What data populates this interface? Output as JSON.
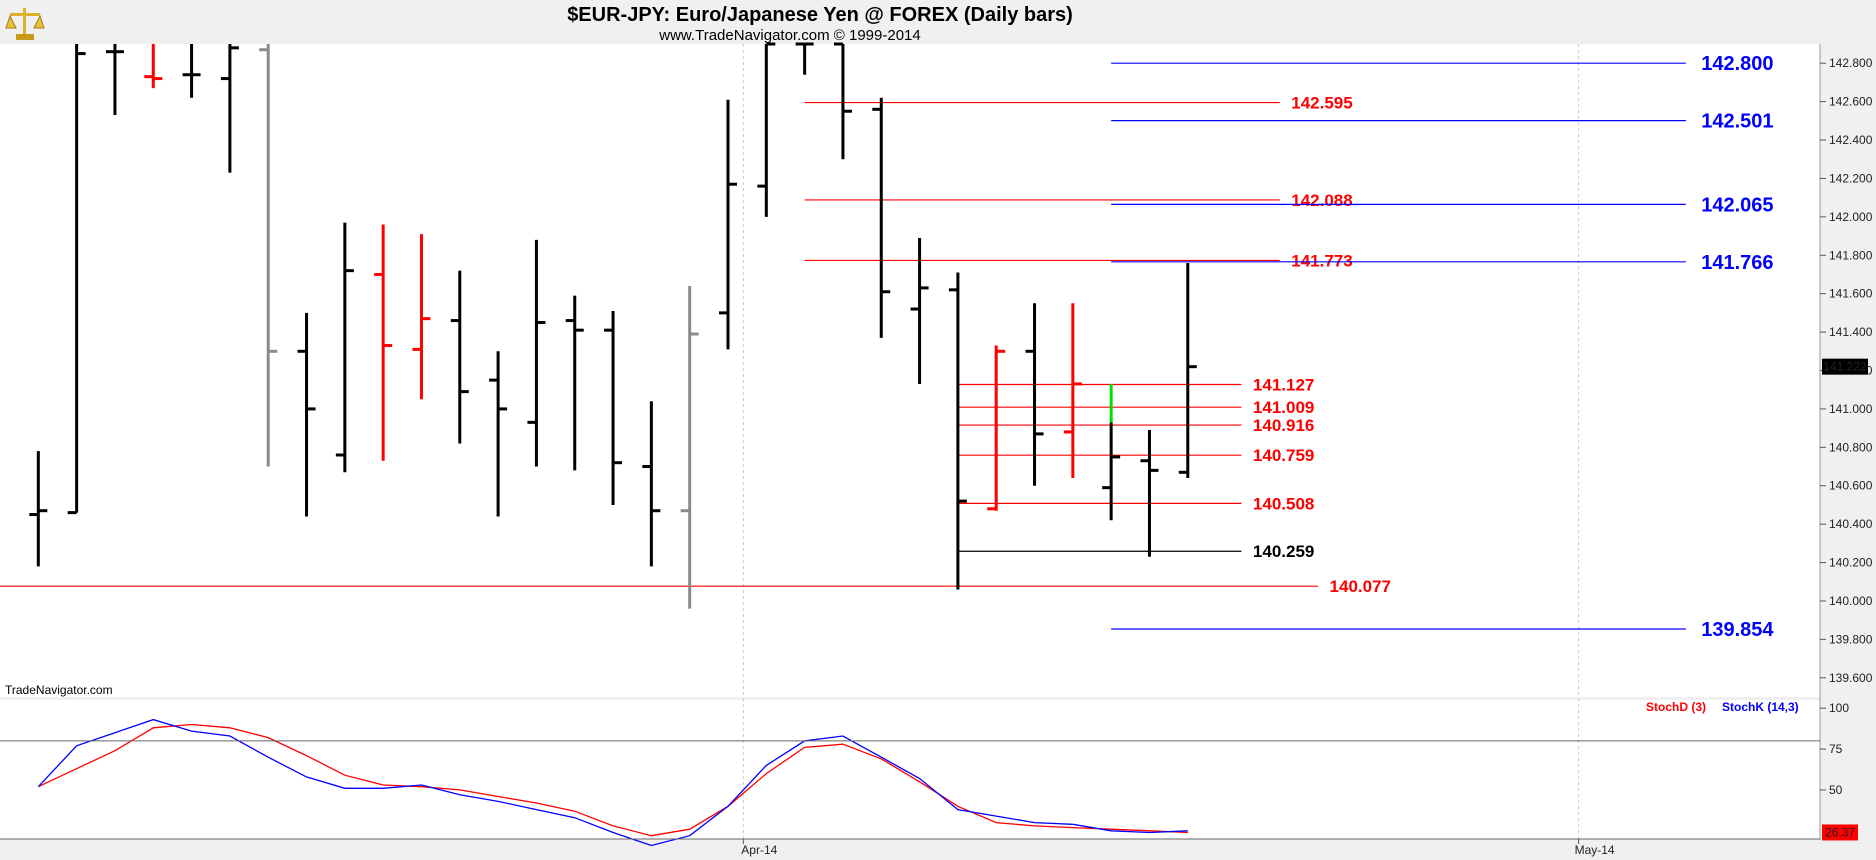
{
  "header": {
    "title": "$EUR-JPY:  Euro/Japanese Yen @ FOREX  (Daily bars)",
    "subtitle": "www.TradeNavigator.com © 1999-2014",
    "watermark": "TradeNavigator.com",
    "logo_icon": "scales-icon"
  },
  "chart_data": {
    "type": "ohlc",
    "price_axis": {
      "ylim": [
        139.5,
        142.9
      ],
      "ticks": [
        "142.800",
        "142.600",
        "142.400",
        "142.200",
        "142.000",
        "141.800",
        "141.600",
        "141.400",
        "141.200",
        "141.000",
        "140.800",
        "140.600",
        "140.400",
        "140.200",
        "140.000",
        "139.800",
        "139.600"
      ],
      "current_price_label": "141.222"
    },
    "x_axis": {
      "labels": [
        {
          "text": "Apr-14",
          "index": 18.4
        },
        {
          "text": "May-14",
          "index": 40.2
        }
      ],
      "xlim": [
        -1,
        46.5
      ]
    },
    "bars": [
      {
        "i": 0,
        "o": 140.45,
        "h": 140.78,
        "l": 140.18,
        "c": 140.47,
        "color": "black"
      },
      {
        "i": 1,
        "o": 140.46,
        "h": 142.9,
        "l": 140.46,
        "c": 142.85,
        "color": "black"
      },
      {
        "i": 2,
        "o": 142.86,
        "h": 142.9,
        "l": 142.53,
        "c": 142.86,
        "color": "black"
      },
      {
        "i": 3,
        "o": 142.73,
        "h": 142.9,
        "l": 142.67,
        "c": 142.72,
        "color": "red"
      },
      {
        "i": 4,
        "o": 142.74,
        "h": 142.9,
        "l": 142.62,
        "c": 142.74,
        "color": "black"
      },
      {
        "i": 5,
        "o": 142.72,
        "h": 142.9,
        "l": 142.23,
        "c": 142.88,
        "color": "black"
      },
      {
        "i": 6,
        "o": 142.87,
        "h": 142.9,
        "l": 140.7,
        "c": 141.3,
        "color": "gray"
      },
      {
        "i": 7,
        "o": 141.3,
        "h": 141.5,
        "l": 140.44,
        "c": 141.0,
        "color": "black"
      },
      {
        "i": 8,
        "o": 140.76,
        "h": 141.97,
        "l": 140.67,
        "c": 141.72,
        "color": "black"
      },
      {
        "i": 9,
        "o": 141.7,
        "h": 141.96,
        "l": 140.73,
        "c": 141.33,
        "color": "red"
      },
      {
        "i": 10,
        "o": 141.31,
        "h": 141.91,
        "l": 141.05,
        "c": 141.47,
        "color": "red"
      },
      {
        "i": 11,
        "o": 141.46,
        "h": 141.72,
        "l": 140.82,
        "c": 141.09,
        "color": "black"
      },
      {
        "i": 12,
        "o": 141.15,
        "h": 141.3,
        "l": 140.44,
        "c": 141.0,
        "color": "black"
      },
      {
        "i": 13,
        "o": 140.93,
        "h": 141.88,
        "l": 140.7,
        "c": 141.45,
        "color": "black"
      },
      {
        "i": 14,
        "o": 141.46,
        "h": 141.59,
        "l": 140.68,
        "c": 141.41,
        "color": "black"
      },
      {
        "i": 15,
        "o": 141.41,
        "h": 141.51,
        "l": 140.5,
        "c": 140.72,
        "color": "black"
      },
      {
        "i": 16,
        "o": 140.7,
        "h": 141.04,
        "l": 140.18,
        "c": 140.47,
        "color": "black"
      },
      {
        "i": 17,
        "o": 140.47,
        "h": 141.64,
        "l": 139.96,
        "c": 141.39,
        "color": "gray"
      },
      {
        "i": 18,
        "o": 141.5,
        "h": 142.61,
        "l": 141.31,
        "c": 142.17,
        "color": "black"
      },
      {
        "i": 19,
        "o": 142.16,
        "h": 142.9,
        "l": 142.0,
        "c": 142.9,
        "color": "black"
      },
      {
        "i": 20,
        "o": 142.9,
        "h": 142.9,
        "l": 142.74,
        "c": 142.9,
        "color": "black"
      },
      {
        "i": 21,
        "o": 142.9,
        "h": 142.9,
        "l": 142.3,
        "c": 142.55,
        "color": "black"
      },
      {
        "i": 22,
        "o": 142.56,
        "h": 142.62,
        "l": 141.37,
        "c": 141.61,
        "color": "black"
      },
      {
        "i": 23,
        "o": 141.52,
        "h": 141.89,
        "l": 141.13,
        "c": 141.63,
        "color": "black"
      },
      {
        "i": 24,
        "o": 141.62,
        "h": 141.71,
        "l": 140.06,
        "c": 140.52,
        "color": "black"
      },
      {
        "i": 25,
        "o": 140.48,
        "h": 141.33,
        "l": 140.47,
        "c": 141.3,
        "color": "red"
      },
      {
        "i": 26,
        "o": 141.3,
        "h": 141.55,
        "l": 140.6,
        "c": 140.87,
        "color": "black"
      },
      {
        "i": 27,
        "o": 140.88,
        "h": 141.55,
        "l": 140.64,
        "c": 141.13,
        "color": "red"
      },
      {
        "i": 28,
        "o": 140.59,
        "h": 140.93,
        "l": 140.42,
        "c": 140.75,
        "color": "black"
      },
      {
        "i": 29,
        "o": 140.73,
        "h": 140.89,
        "l": 140.23,
        "c": 140.68,
        "color": "black"
      },
      {
        "i": 30,
        "o": 140.67,
        "h": 141.76,
        "l": 140.64,
        "c": 141.22,
        "color": "black"
      }
    ],
    "green_segment": {
      "i": 28,
      "from": 140.93,
      "to": 141.13,
      "color": "#00dd00"
    },
    "levels": [
      {
        "value": 142.8,
        "label": "142.800",
        "color": "#0000ff",
        "from": 28,
        "to": 43.0,
        "label_at": 43.4,
        "size": 20
      },
      {
        "value": 142.595,
        "label": "142.595",
        "color": "#ff0000",
        "from": 20,
        "to": 32.4,
        "label_at": 32.7,
        "size": 17
      },
      {
        "value": 142.501,
        "label": "142.501",
        "color": "#0000ff",
        "from": 28,
        "to": 43.0,
        "label_at": 43.4,
        "size": 20
      },
      {
        "value": 142.088,
        "label": "142.088",
        "color": "#ff0000",
        "from": 20,
        "to": 32.4,
        "label_at": 32.7,
        "size": 17
      },
      {
        "value": 142.065,
        "label": "142.065",
        "color": "#0000ff",
        "from": 28,
        "to": 43.0,
        "label_at": 43.4,
        "size": 20
      },
      {
        "value": 141.773,
        "label": "141.773",
        "color": "#ff0000",
        "from": 20,
        "to": 32.4,
        "label_at": 32.7,
        "size": 17
      },
      {
        "value": 141.766,
        "label": "141.766",
        "color": "#0000ff",
        "from": 28,
        "to": 43.0,
        "label_at": 43.4,
        "size": 20
      },
      {
        "value": 141.127,
        "label": "141.127",
        "color": "#ff0000",
        "from": 24,
        "to": 31.4,
        "label_at": 31.7,
        "size": 17
      },
      {
        "value": 141.009,
        "label": "141.009",
        "color": "#ff0000",
        "from": 24,
        "to": 31.4,
        "label_at": 31.7,
        "size": 17
      },
      {
        "value": 140.916,
        "label": "140.916",
        "color": "#ff0000",
        "from": 24,
        "to": 31.4,
        "label_at": 31.7,
        "size": 17
      },
      {
        "value": 140.759,
        "label": "140.759",
        "color": "#ff0000",
        "from": 24,
        "to": 31.4,
        "label_at": 31.7,
        "size": 17
      },
      {
        "value": 140.508,
        "label": "140.508",
        "color": "#ff0000",
        "from": 24,
        "to": 31.4,
        "label_at": 31.7,
        "size": 17
      },
      {
        "value": 140.259,
        "label": "140.259",
        "color": "#000000",
        "from": 24,
        "to": 31.4,
        "label_at": 31.7,
        "size": 17
      },
      {
        "value": 140.077,
        "label": "140.077",
        "color": "#ff0000",
        "from": -1,
        "to": 33.4,
        "label_at": 33.7,
        "size": 17
      },
      {
        "value": 139.854,
        "label": "139.854",
        "color": "#0000ff",
        "from": 28,
        "to": 43.0,
        "label_at": 43.4,
        "size": 20
      }
    ],
    "stochastic": {
      "ylim": [
        20,
        105
      ],
      "ticks": [
        "100",
        "75",
        "50"
      ],
      "reference_lines": [
        80,
        20
      ],
      "current_label": "26.37",
      "legend": [
        {
          "name": "StochD (3)",
          "color": "#ff0000"
        },
        {
          "name": "StochK (14,3)",
          "color": "#0000ff"
        }
      ],
      "stoch_d": [
        52,
        63,
        74,
        88,
        90,
        88,
        82,
        71,
        59,
        53,
        52,
        50,
        46,
        42,
        37,
        28,
        22,
        26,
        40,
        60,
        76,
        78,
        69,
        55,
        40,
        30,
        28,
        27,
        26,
        25,
        24
      ],
      "stoch_k": [
        52,
        77,
        85,
        93,
        86,
        83,
        70,
        58,
        51,
        51,
        53,
        47,
        43,
        38,
        33,
        24,
        16,
        22,
        40,
        65,
        80,
        83,
        70,
        57,
        38,
        34,
        30,
        29,
        25,
        24,
        25
      ]
    }
  }
}
